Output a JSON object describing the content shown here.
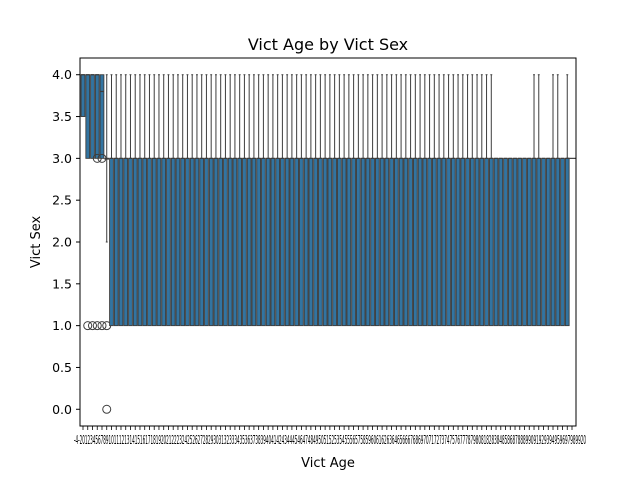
{
  "chart_data": {
    "type": "box",
    "title": "Vict Age by Vict Sex",
    "xlabel": "Vict Age",
    "ylabel": "Vict Sex",
    "ylim": [
      -0.2,
      4.2
    ],
    "yticks": [
      0.0,
      0.5,
      1.0,
      1.5,
      2.0,
      2.5,
      3.0,
      3.5,
      4.0
    ],
    "ytick_labels": [
      "0.0",
      "0.5",
      "1.0",
      "1.5",
      "2.0",
      "2.5",
      "3.0",
      "3.5",
      "4.0"
    ],
    "grid": false,
    "box_color": "#3274a1",
    "line_color": "#3d3d3d",
    "x_tick_text": "-4-2012345678910111213141516171819202122232425262728293031323334353637383940414243444546474849505152535455565758596061626364656667686970717273747576777879808182838485868788899091929394959697989920",
    "special_boxes": [
      {
        "category": "-4",
        "q1": 3.5,
        "median": 4.0,
        "q3": 4.0,
        "whisker_low": 3.5,
        "whisker_high": 4.0,
        "fliers": []
      },
      {
        "category": "-2",
        "q1": 3.0,
        "median": 4.0,
        "q3": 4.0,
        "whisker_low": 3.0,
        "whisker_high": 4.0,
        "fliers": [
          1.0
        ]
      },
      {
        "category": "-1",
        "q1": 3.0,
        "median": 4.0,
        "q3": 4.0,
        "whisker_low": 3.0,
        "whisker_high": 4.0,
        "fliers": [
          1.0
        ]
      },
      {
        "category": "0",
        "q1": 3.0,
        "median": 4.0,
        "q3": 4.0,
        "whisker_low": 3.0,
        "whisker_high": 4.0,
        "fliers": [
          1.0,
          3.0
        ]
      },
      {
        "category": "1",
        "q1": 3.0,
        "median": 3.8,
        "q3": 4.0,
        "whisker_low": 3.0,
        "whisker_high": 4.0,
        "fliers": [
          1.0,
          3.0
        ]
      },
      {
        "category": "2",
        "q1": 3.0,
        "median": 3.0,
        "q3": 3.0,
        "whisker_low": 2.0,
        "whisker_high": 4.0,
        "fliers": [
          0.0,
          1.0
        ]
      },
      {
        "category": "3",
        "q1": 1.0,
        "median": 3.0,
        "q3": 3.0,
        "whisker_low": 1.0,
        "whisker_high": 4.0,
        "fliers": []
      }
    ],
    "regular_box": {
      "q1": 1.0,
      "median": 3.0,
      "q3": 3.0,
      "whisker_low": 1.0,
      "whisker_high": 4.0
    },
    "regular_range": [
      4,
      99
    ],
    "no_upper_whisker": [
      84,
      85,
      86,
      87,
      88,
      89,
      90,
      91,
      94,
      95,
      98
    ],
    "last_category": "120",
    "last_box": {
      "median": 3.0
    }
  }
}
